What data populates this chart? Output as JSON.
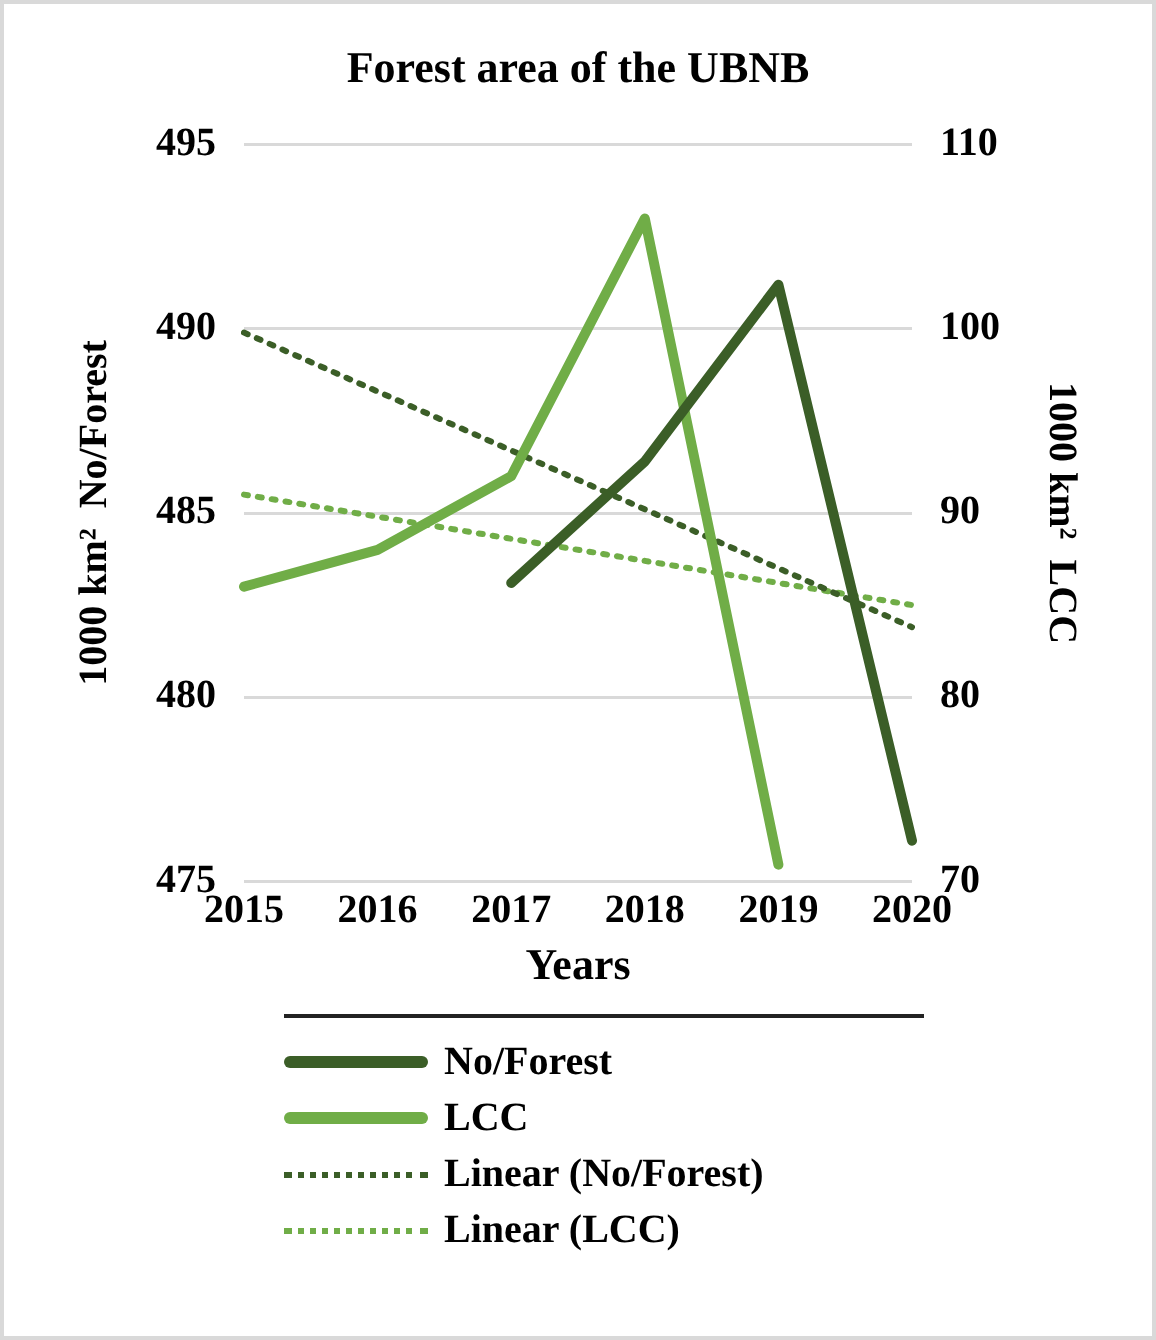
{
  "chart_data": {
    "type": "line",
    "title": "Forest area of the UBNB",
    "xlabel": "Years",
    "ylabel": "1000 km²  No/Forest",
    "y2label": "1000 km²  LCC",
    "categories": [
      "2015",
      "2016",
      "2017",
      "2018",
      "2019",
      "2020"
    ],
    "series": [
      {
        "name": "No/Forest",
        "color": "#3b5e27",
        "values": [
          null,
          null,
          483.1,
          486.4,
          491.2,
          476.1
        ]
      },
      {
        "name": "LCC",
        "color": "#70ad47",
        "axis": "y2",
        "values": [
          86,
          88,
          92,
          106,
          70.9,
          null
        ]
      },
      {
        "name": "Linear (No/Forest)",
        "color": "#3b5e27",
        "line_style": "dotted",
        "values": [
          489.9,
          488.3,
          486.7,
          485.1,
          483.5,
          481.9
        ]
      },
      {
        "name": "Linear (LCC)",
        "color": "#70ad47",
        "line_style": "dotted",
        "axis": "y2",
        "values": [
          91,
          89.8,
          88.6,
          87.4,
          86.2,
          85.0
        ]
      }
    ],
    "ylim": [
      475,
      495
    ],
    "yticks": [
      475,
      480,
      485,
      490,
      495
    ],
    "y2lim": [
      70,
      110
    ],
    "y2ticks": [
      70,
      80,
      90,
      100,
      110
    ],
    "grid": "y",
    "legend": "bottom",
    "marker": "none",
    "line_style": "solid"
  }
}
